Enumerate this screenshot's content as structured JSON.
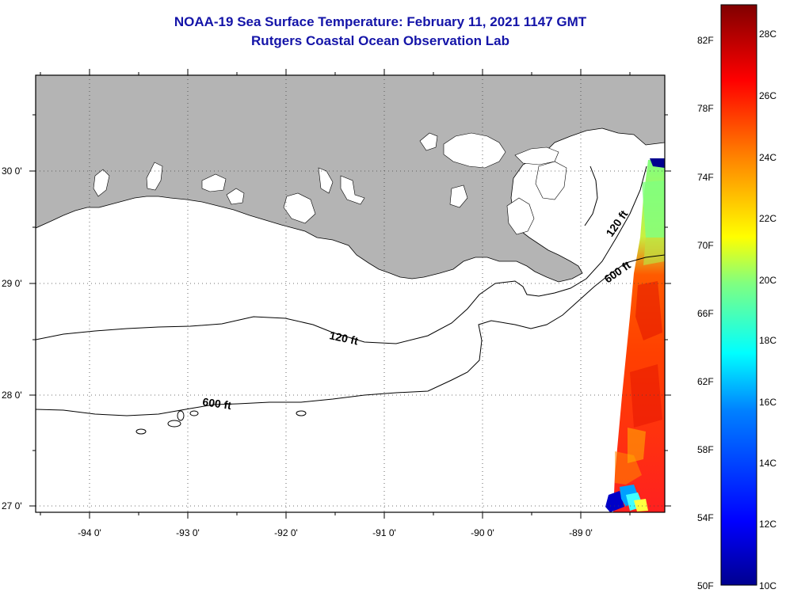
{
  "title": "NOAA-19 Sea Surface Temperature:  February 11, 2021 1147 GMT",
  "subtitle": "Rutgers Coastal Ocean Observation Lab",
  "map": {
    "lat_labels": [
      "30 0'",
      "29 0'",
      "28 0'",
      "27 0'"
    ],
    "lon_labels": [
      "-94 0'",
      "-93 0'",
      "-92 0'",
      "-91 0'",
      "-90 0'",
      "-89 0'"
    ],
    "contours": [
      {
        "label": "120 ft",
        "depth_ft": 120
      },
      {
        "label": "600 ft",
        "depth_ft": 600
      },
      {
        "label": "120 ft",
        "depth_ft": 120
      },
      {
        "label": "600 ft",
        "depth_ft": 600
      }
    ],
    "colors": {
      "land": "#b4b4b4",
      "water": "#ffffff",
      "title": "#1414a8"
    }
  },
  "colorbar": {
    "fahrenheit_labels": [
      "82F",
      "78F",
      "74F",
      "70F",
      "66F",
      "62F",
      "58F",
      "54F",
      "50F"
    ],
    "celsius_labels": [
      "28C",
      "26C",
      "24C",
      "22C",
      "20C",
      "18C",
      "16C",
      "14C",
      "12C",
      "10C"
    ],
    "range_c": [
      10,
      29.5
    ],
    "colormap": [
      "#00008f",
      "#0000ff",
      "#0080ff",
      "#00ffff",
      "#80ff80",
      "#ffff00",
      "#ff8000",
      "#ff0000",
      "#800000"
    ]
  }
}
